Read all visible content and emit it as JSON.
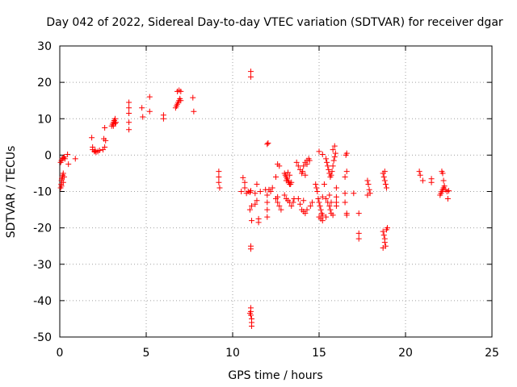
{
  "chart_data": {
    "type": "scatter",
    "title": "Day 042 of 2022, Sidereal Day-to-day VTEC variation (SDTVAR) for receiver dgar",
    "xlabel": "GPS time / hours",
    "ylabel": "SDTVAR / TECUs",
    "xlim": [
      0,
      25
    ],
    "ylim": [
      -50,
      30
    ],
    "xticks": [
      0,
      5,
      10,
      15,
      20,
      25
    ],
    "yticks": [
      -50,
      -40,
      -30,
      -20,
      -10,
      0,
      10,
      20,
      30
    ],
    "xtick_labels": [
      "0",
      "5",
      "10",
      "15",
      "20",
      "25"
    ],
    "ytick_labels": [
      "-50",
      "-40",
      "-30",
      "-20",
      "-10",
      "0",
      "10",
      "20",
      "30"
    ],
    "grid": true,
    "marker": "+",
    "color": "#ff0000",
    "series": [
      {
        "name": "SDTVAR",
        "points": [
          [
            0.05,
            -9
          ],
          [
            0.08,
            -8
          ],
          [
            0.1,
            -7
          ],
          [
            0.12,
            -6.5
          ],
          [
            0.15,
            -6
          ],
          [
            0.18,
            -5.5
          ],
          [
            0.2,
            -5
          ],
          [
            0.25,
            -6
          ],
          [
            0.1,
            -8.5
          ],
          [
            0.2,
            -7.5
          ],
          [
            0.05,
            -2
          ],
          [
            0.1,
            -1.5
          ],
          [
            0.15,
            -1
          ],
          [
            0.2,
            -0.8
          ],
          [
            0.25,
            -0.5
          ],
          [
            0.3,
            -1
          ],
          [
            0.45,
            0.2
          ],
          [
            0.5,
            -2.5
          ],
          [
            0.9,
            -1
          ],
          [
            1.85,
            4.8
          ],
          [
            1.9,
            2.2
          ],
          [
            1.9,
            1.5
          ],
          [
            2,
            1
          ],
          [
            2.05,
            1.2
          ],
          [
            2.1,
            0.8
          ],
          [
            2.2,
            1
          ],
          [
            2.3,
            1.3
          ],
          [
            2.5,
            1.5
          ],
          [
            2.6,
            2.2
          ],
          [
            2.55,
            4.5
          ],
          [
            2.6,
            7.5
          ],
          [
            2.65,
            4
          ],
          [
            3,
            8
          ],
          [
            3.05,
            8.5
          ],
          [
            3.1,
            9
          ],
          [
            3.15,
            9.5
          ],
          [
            3.2,
            10
          ],
          [
            3.25,
            9
          ],
          [
            3.1,
            8
          ],
          [
            3.2,
            8.7
          ],
          [
            4,
            14.5
          ],
          [
            4,
            13
          ],
          [
            4,
            11.5
          ],
          [
            4,
            9
          ],
          [
            4,
            7
          ],
          [
            4.75,
            13
          ],
          [
            4.8,
            10.5
          ],
          [
            5.2,
            16
          ],
          [
            5.2,
            12
          ],
          [
            6,
            11
          ],
          [
            6,
            10
          ],
          [
            6.7,
            13
          ],
          [
            6.75,
            13.5
          ],
          [
            6.8,
            14
          ],
          [
            6.85,
            14.5
          ],
          [
            6.9,
            15
          ],
          [
            6.95,
            15.5
          ],
          [
            7,
            15
          ],
          [
            6.8,
            17.5
          ],
          [
            6.9,
            17.8
          ],
          [
            7,
            17.5
          ],
          [
            7.7,
            15.8
          ],
          [
            7.75,
            12
          ],
          [
            9.2,
            -4.5
          ],
          [
            9.2,
            -6
          ],
          [
            9.2,
            -7.5
          ],
          [
            9.25,
            -9
          ],
          [
            10.5,
            -10
          ],
          [
            10.6,
            -6.2
          ],
          [
            10.7,
            -9
          ],
          [
            10.7,
            -7.5
          ],
          [
            10.8,
            -10.5
          ],
          [
            10.9,
            -10
          ],
          [
            11,
            -10.2
          ],
          [
            11.05,
            -9.8
          ],
          [
            11.05,
            23
          ],
          [
            11.05,
            21.5
          ],
          [
            11.05,
            -25
          ],
          [
            11.05,
            -25.8
          ],
          [
            11.05,
            -42
          ],
          [
            11.05,
            -43
          ],
          [
            11.05,
            -44
          ],
          [
            11.1,
            -45
          ],
          [
            11.1,
            -46
          ],
          [
            11.1,
            -47
          ],
          [
            11.0,
            -43.5
          ],
          [
            11,
            -15
          ],
          [
            11.1,
            -18
          ],
          [
            11.1,
            -14
          ],
          [
            11.3,
            -13.5
          ],
          [
            11.4,
            -12.5
          ],
          [
            11.5,
            -17.5
          ],
          [
            11.5,
            -18.5
          ],
          [
            11.3,
            -10.5
          ],
          [
            11.6,
            -10
          ],
          [
            11.4,
            -8
          ],
          [
            11.9,
            -9.5
          ],
          [
            12,
            -11
          ],
          [
            12,
            -13
          ],
          [
            12,
            -15
          ],
          [
            12,
            -17
          ],
          [
            12.1,
            -9.5
          ],
          [
            12.2,
            -10
          ],
          [
            12.3,
            -9
          ],
          [
            12,
            3
          ],
          [
            12.05,
            3.3
          ],
          [
            12.5,
            -12
          ],
          [
            12.6,
            -13
          ],
          [
            12.7,
            -14
          ],
          [
            12.8,
            -15
          ],
          [
            12.6,
            -11.5
          ],
          [
            12.5,
            -6
          ],
          [
            12.6,
            -2.5
          ],
          [
            12.7,
            -3
          ],
          [
            13,
            -5
          ],
          [
            13.05,
            -5.5
          ],
          [
            13.1,
            -6
          ],
          [
            13.15,
            -6.5
          ],
          [
            13.2,
            -7
          ],
          [
            13.25,
            -7.5
          ],
          [
            13.3,
            -8
          ],
          [
            13.35,
            -8
          ],
          [
            13.4,
            -7.5
          ],
          [
            13.1,
            -7
          ],
          [
            13.2,
            -4.8
          ],
          [
            13.3,
            -5.5
          ],
          [
            13,
            -11
          ],
          [
            13.1,
            -12
          ],
          [
            13.2,
            -12.5
          ],
          [
            13.3,
            -13
          ],
          [
            13.4,
            -14
          ],
          [
            13.5,
            -13
          ],
          [
            13.55,
            -12
          ],
          [
            13.7,
            -2
          ],
          [
            13.8,
            -3
          ],
          [
            13.9,
            -4
          ],
          [
            14,
            -5
          ],
          [
            14.05,
            -4.5
          ],
          [
            14.1,
            -3
          ],
          [
            14.2,
            -2
          ],
          [
            14.3,
            -1.5
          ],
          [
            14.4,
            -1
          ],
          [
            14.45,
            -1.5
          ],
          [
            14.3,
            -2.5
          ],
          [
            14.2,
            -5.5
          ],
          [
            13.8,
            -12
          ],
          [
            13.9,
            -13.5
          ],
          [
            14,
            -15
          ],
          [
            14.1,
            -15.5
          ],
          [
            14.2,
            -16
          ],
          [
            14.3,
            -15
          ],
          [
            14.1,
            -12.5
          ],
          [
            14.5,
            -14
          ],
          [
            14.6,
            -13
          ],
          [
            14.8,
            -8
          ],
          [
            14.85,
            -9
          ],
          [
            14.9,
            -10
          ],
          [
            14.95,
            -12
          ],
          [
            15,
            -13
          ],
          [
            15.05,
            -14
          ],
          [
            15.1,
            -15
          ],
          [
            15.15,
            -16
          ],
          [
            15.2,
            -16.5
          ],
          [
            15,
            -17
          ],
          [
            15.1,
            -17.5
          ],
          [
            15.2,
            -18
          ],
          [
            15,
            1
          ],
          [
            15.2,
            0.2
          ],
          [
            15.3,
            -8
          ],
          [
            15.2,
            -11.5
          ],
          [
            15.4,
            -1
          ],
          [
            15.45,
            -2
          ],
          [
            15.5,
            -3
          ],
          [
            15.55,
            -4
          ],
          [
            15.6,
            -5
          ],
          [
            15.65,
            -6
          ],
          [
            15.7,
            -5.5
          ],
          [
            15.75,
            -4.5
          ],
          [
            15.8,
            -3
          ],
          [
            15.85,
            -1.5
          ],
          [
            15.9,
            -0.5
          ],
          [
            15.95,
            0.5
          ],
          [
            15.8,
            1.5
          ],
          [
            15.9,
            2.5
          ],
          [
            15.4,
            -12
          ],
          [
            15.5,
            -13
          ],
          [
            15.6,
            -14
          ],
          [
            15.65,
            -15
          ],
          [
            15.7,
            -16
          ],
          [
            15.8,
            -16.5
          ],
          [
            15.4,
            -17
          ],
          [
            15.6,
            -11
          ],
          [
            15.7,
            -13
          ],
          [
            16,
            -9
          ],
          [
            16,
            -11.5
          ],
          [
            16,
            -13
          ],
          [
            16,
            -14
          ],
          [
            16.5,
            -6
          ],
          [
            16.5,
            -10.5
          ],
          [
            16.5,
            -13
          ],
          [
            16.6,
            -16
          ],
          [
            16.6,
            -16.5
          ],
          [
            16.6,
            -4.5
          ],
          [
            16.55,
            0
          ],
          [
            16.6,
            0.5
          ],
          [
            17,
            -10.5
          ],
          [
            17.3,
            -16
          ],
          [
            17.3,
            -21.5
          ],
          [
            17.3,
            -23
          ],
          [
            17.8,
            -7
          ],
          [
            17.85,
            -8
          ],
          [
            17.9,
            -9.5
          ],
          [
            17.95,
            -10.5
          ],
          [
            17.8,
            -11
          ],
          [
            18.7,
            -5
          ],
          [
            18.75,
            -6
          ],
          [
            18.8,
            -7
          ],
          [
            18.85,
            -8
          ],
          [
            18.9,
            -9
          ],
          [
            18.8,
            -4.5
          ],
          [
            18.7,
            -21
          ],
          [
            18.75,
            -22
          ],
          [
            18.8,
            -23
          ],
          [
            18.8,
            -24
          ],
          [
            18.85,
            -25
          ],
          [
            18.9,
            -20.5
          ],
          [
            18.95,
            -20
          ],
          [
            18.7,
            -25.5
          ],
          [
            20.8,
            -4.5
          ],
          [
            20.85,
            -5.5
          ],
          [
            21,
            -7
          ],
          [
            21.5,
            -6.5
          ],
          [
            21.5,
            -7.5
          ],
          [
            22,
            -11
          ],
          [
            22.05,
            -10.5
          ],
          [
            22.1,
            -10
          ],
          [
            22.15,
            -9.5
          ],
          [
            22.2,
            -9
          ],
          [
            22.25,
            -8.5
          ],
          [
            22.1,
            -4.5
          ],
          [
            22.15,
            -5
          ],
          [
            22.2,
            -7
          ],
          [
            22.3,
            -9.5
          ],
          [
            22.4,
            -10
          ],
          [
            22.45,
            -12
          ],
          [
            22.5,
            -9.8
          ]
        ]
      }
    ]
  }
}
